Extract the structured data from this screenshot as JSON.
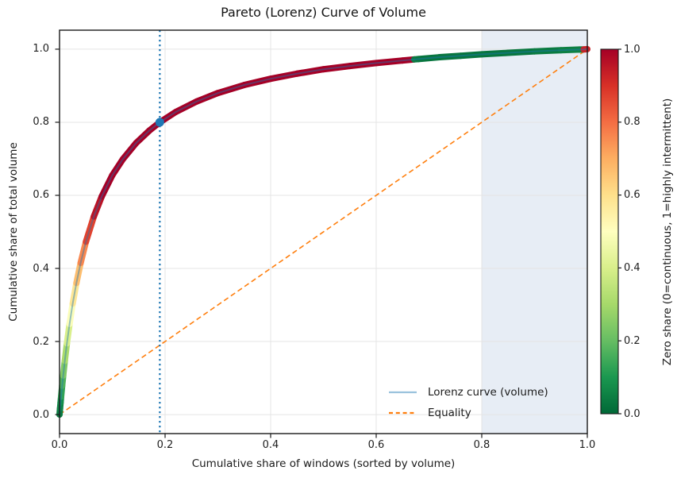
{
  "chart_data": {
    "type": "scatter",
    "title": "Pareto (Lorenz) Curve of Volume",
    "xlabel": "Cumulative share of windows (sorted by volume)",
    "ylabel": "Cumulative share of total volume",
    "xlim": [
      0,
      1
    ],
    "ylim": [
      -0.052,
      1.052
    ],
    "xticks": [
      "0.0",
      "0.2",
      "0.4",
      "0.6",
      "0.8",
      "1.0"
    ],
    "yticks": [
      "0.0",
      "0.2",
      "0.4",
      "0.6",
      "0.8",
      "1.0"
    ],
    "grid": true,
    "grid_color": "#e4e4e4",
    "spine_color": "#1a1a1a",
    "lorenz_points": [
      [
        0.0,
        0.0,
        0.02
      ],
      [
        0.001,
        0.017,
        0.04
      ],
      [
        0.002,
        0.033,
        0.06
      ],
      [
        0.003,
        0.049,
        0.08
      ],
      [
        0.005,
        0.079,
        0.13
      ],
      [
        0.007,
        0.107,
        0.17
      ],
      [
        0.01,
        0.147,
        0.24
      ],
      [
        0.014,
        0.195,
        0.31
      ],
      [
        0.019,
        0.248,
        0.4
      ],
      [
        0.025,
        0.304,
        0.49
      ],
      [
        0.032,
        0.36,
        0.58
      ],
      [
        0.04,
        0.415,
        0.67
      ],
      [
        0.05,
        0.473,
        0.76
      ],
      [
        0.065,
        0.542,
        0.87
      ],
      [
        0.08,
        0.597,
        0.96
      ],
      [
        0.1,
        0.655,
        1.0
      ],
      [
        0.12,
        0.699,
        1.0
      ],
      [
        0.145,
        0.743,
        1.0
      ],
      [
        0.17,
        0.777,
        1.0
      ],
      [
        0.19,
        0.8,
        1.0
      ],
      [
        0.22,
        0.828,
        1.0
      ],
      [
        0.26,
        0.857,
        1.0
      ],
      [
        0.3,
        0.88,
        1.0
      ],
      [
        0.35,
        0.902,
        1.0
      ],
      [
        0.4,
        0.919,
        1.0
      ],
      [
        0.45,
        0.933,
        1.0
      ],
      [
        0.5,
        0.945,
        1.0
      ],
      [
        0.55,
        0.954,
        1.0
      ],
      [
        0.6,
        0.962,
        1.0
      ],
      [
        0.65,
        0.969,
        1.0
      ],
      [
        0.672,
        0.972,
        1.0
      ],
      [
        0.68,
        0.973,
        0.04
      ],
      [
        0.72,
        0.978,
        0.03
      ],
      [
        0.76,
        0.982,
        0.03
      ],
      [
        0.8,
        0.986,
        0.03
      ],
      [
        0.85,
        0.99,
        0.03
      ],
      [
        0.9,
        0.994,
        0.03
      ],
      [
        0.95,
        0.997,
        0.04
      ],
      [
        0.985,
        0.999,
        0.05
      ],
      [
        0.993,
        0.9993,
        0.05
      ],
      [
        1.0,
        1.0,
        0.93
      ]
    ],
    "lorenz_band_width": 8,
    "lorenz_line": {
      "color": "#1f77b4",
      "opacity": 0.45,
      "width": 2
    },
    "equality_line": {
      "x": [
        0,
        1
      ],
      "y": [
        0,
        1
      ],
      "color": "#ff7f0e",
      "dash": "6.5 4",
      "width": 1.6
    },
    "pareto_vline": {
      "x": 0.19,
      "color": "#1f77b4",
      "dash": "2.2 3.8",
      "width": 2.2
    },
    "pareto_marker": {
      "x": 0.19,
      "y": 0.8,
      "color": "#1f77b4",
      "radius": 5.5
    },
    "shaded_region": {
      "x0": 0.8,
      "x1": 1.0,
      "color": "#b0c4de",
      "opacity": 0.3
    },
    "legend": {
      "position": "lower right",
      "frame": false,
      "entries": [
        {
          "label": "Lorenz curve (volume)",
          "style": "solid",
          "color": "#1f77b4",
          "opacity": 0.45
        },
        {
          "label": "Equality",
          "style": "dashed",
          "color": "#ff7f0e",
          "opacity": 1
        }
      ]
    },
    "colorbar": {
      "label": "Zero share (0=continuous, 1=highly intermittent)",
      "ticks": [
        "1.0",
        "0.8",
        "0.6",
        "0.4",
        "0.2",
        "0.0"
      ],
      "colormap": "RdYlGn_r",
      "stops": [
        [
          0.0,
          "#006837"
        ],
        [
          0.1,
          "#1a9850"
        ],
        [
          0.2,
          "#66bd63"
        ],
        [
          0.3,
          "#a6d96a"
        ],
        [
          0.4,
          "#d9ef8b"
        ],
        [
          0.5,
          "#ffffbf"
        ],
        [
          0.6,
          "#fee08b"
        ],
        [
          0.7,
          "#fdae61"
        ],
        [
          0.8,
          "#f46d43"
        ],
        [
          0.9,
          "#d73027"
        ],
        [
          1.0,
          "#a50026"
        ]
      ]
    }
  }
}
